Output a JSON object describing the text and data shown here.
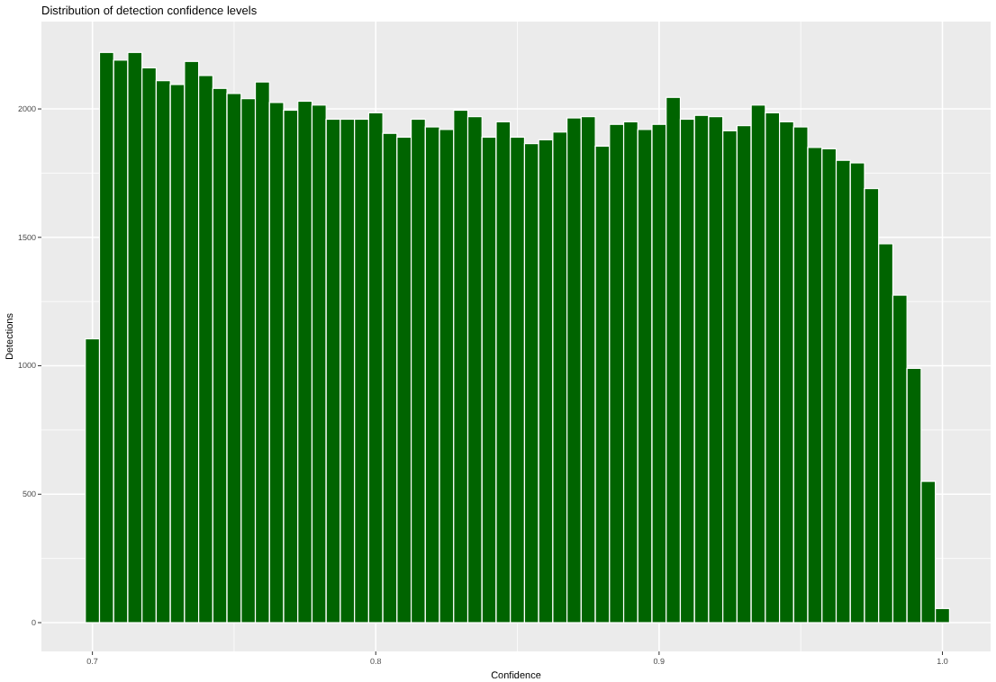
{
  "chart_data": {
    "type": "histogram",
    "title": "Distribution of detection confidence levels",
    "xlabel": "Confidence",
    "ylabel": "Detections",
    "bins": [
      0.6975,
      0.7025,
      0.7075,
      0.7125,
      0.7175,
      0.7225,
      0.7275,
      0.7325,
      0.7375,
      0.7425,
      0.7475,
      0.7525,
      0.7575,
      0.7625,
      0.7675,
      0.7725,
      0.7775,
      0.7825,
      0.7875,
      0.7925,
      0.7975,
      0.8025,
      0.8075,
      0.8125,
      0.8175,
      0.8225,
      0.8275,
      0.8325,
      0.8375,
      0.8425,
      0.8475,
      0.8525,
      0.8575,
      0.8625,
      0.8675,
      0.8725,
      0.8775,
      0.8825,
      0.8875,
      0.8925,
      0.8975,
      0.9025,
      0.9075,
      0.9125,
      0.9175,
      0.9225,
      0.9275,
      0.9325,
      0.9375,
      0.9425,
      0.9475,
      0.9525,
      0.9575,
      0.9625,
      0.9675,
      0.9725,
      0.9775,
      0.9825,
      0.9875,
      0.9925,
      0.9975,
      1.0025
    ],
    "values": [
      1105,
      2220,
      2190,
      2220,
      2160,
      2110,
      2095,
      2185,
      2130,
      2080,
      2060,
      2040,
      2105,
      2025,
      1995,
      2030,
      2015,
      1960,
      1960,
      1960,
      1985,
      1905,
      1890,
      1960,
      1930,
      1920,
      1995,
      1970,
      1890,
      1950,
      1890,
      1865,
      1880,
      1910,
      1965,
      1970,
      1855,
      1940,
      1950,
      1920,
      1940,
      2045,
      1960,
      1975,
      1970,
      1915,
      1935,
      2015,
      1985,
      1950,
      1930,
      1850,
      1845,
      1800,
      1790,
      1690,
      1475,
      1275,
      990,
      550,
      55
    ],
    "color": "#006400",
    "xlim": [
      0.682,
      1.017
    ],
    "ylim": [
      -112,
      2340
    ],
    "xticks": [
      0.7,
      0.8,
      0.9,
      {
        "value": 1,
        "label": "1.0"
      }
    ],
    "yticks": [
      0,
      500,
      1000,
      1500,
      2000
    ],
    "grid": true
  }
}
